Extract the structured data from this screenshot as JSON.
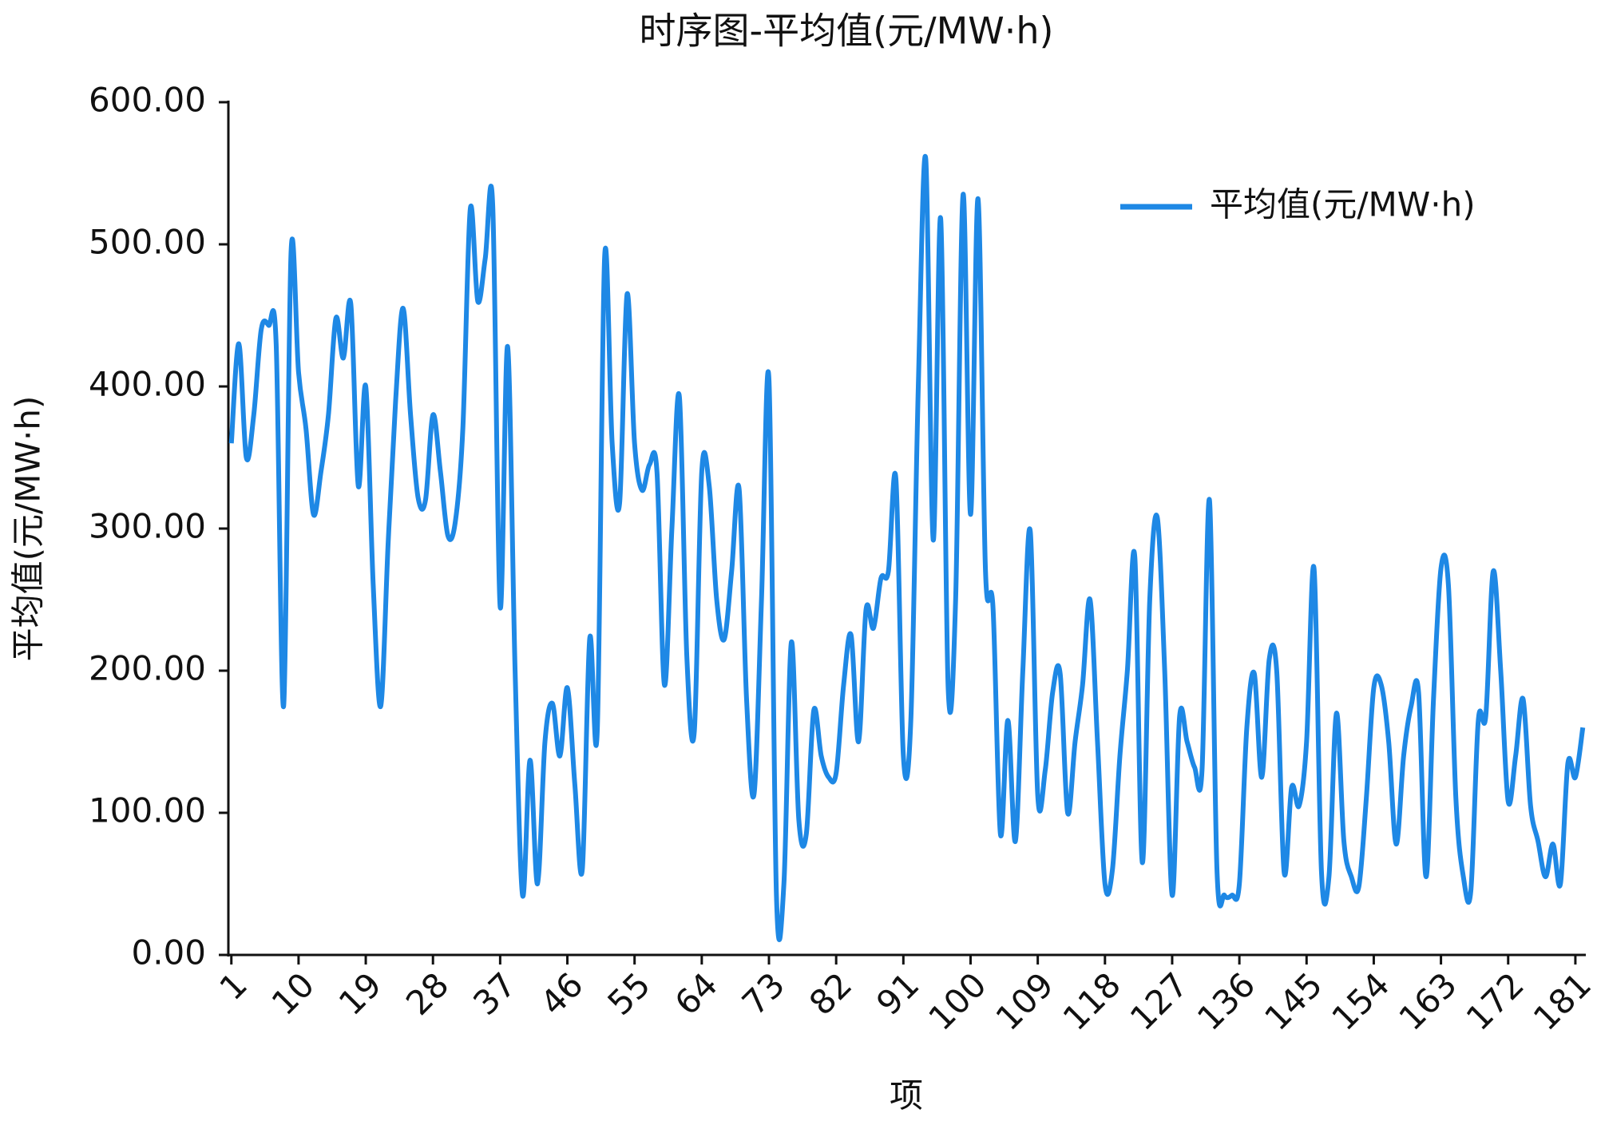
{
  "chart_data": {
    "type": "line",
    "title": "时序图-平均值(元/MW·h)",
    "x_label": "项",
    "y_label": "平均值(元/MW·h)",
    "legend_position": "upper right",
    "x": [
      1,
      2,
      3,
      4,
      5,
      6,
      7,
      8,
      9,
      10,
      11,
      12,
      13,
      14,
      15,
      16,
      17,
      18,
      19,
      20,
      21,
      22,
      23,
      24,
      25,
      26,
      27,
      28,
      29,
      30,
      31,
      32,
      33,
      34,
      35,
      36,
      37,
      38,
      39,
      40,
      41,
      42,
      43,
      44,
      45,
      46,
      47,
      48,
      49,
      50,
      51,
      52,
      53,
      54,
      55,
      56,
      57,
      58,
      59,
      60,
      61,
      62,
      63,
      64,
      65,
      66,
      67,
      68,
      69,
      70,
      71,
      72,
      73,
      74,
      75,
      76,
      77,
      78,
      79,
      80,
      81,
      82,
      83,
      84,
      85,
      86,
      87,
      88,
      89,
      90,
      91,
      92,
      93,
      94,
      95,
      96,
      97,
      98,
      99,
      100,
      101,
      102,
      103,
      104,
      105,
      106,
      107,
      108,
      109,
      110,
      111,
      112,
      113,
      114,
      115,
      116,
      117,
      118,
      119,
      120,
      121,
      122,
      123,
      124,
      125,
      126,
      127,
      128,
      129,
      130,
      131,
      132,
      133,
      134,
      135,
      136,
      137,
      138,
      139,
      140,
      141,
      142,
      143,
      144,
      145,
      146,
      147,
      148,
      149,
      150,
      151,
      152,
      153,
      154,
      155,
      156,
      157,
      158,
      159,
      160,
      161,
      162,
      163,
      164,
      165,
      166,
      167,
      168,
      169,
      170,
      171,
      172,
      173,
      174,
      175,
      176,
      177,
      178,
      179,
      180,
      181,
      182
    ],
    "series": [
      {
        "name": "平均值(元/MW·h)",
        "color": "#1e88e5",
        "values": [
          360,
          430,
          350,
          380,
          440,
          443,
          430,
          175,
          495,
          410,
          370,
          310,
          340,
          380,
          448,
          420,
          458,
          330,
          400,
          260,
          175,
          290,
          390,
          455,
          380,
          322,
          320,
          380,
          340,
          295,
          305,
          370,
          525,
          460,
          490,
          528,
          245,
          428,
          200,
          42,
          137,
          50,
          150,
          177,
          140,
          188,
          120,
          60,
          223,
          157,
          492,
          360,
          318,
          465,
          360,
          327,
          345,
          340,
          190,
          300,
          393,
          210,
          157,
          340,
          330,
          250,
          222,
          270,
          328,
          180,
          113,
          250,
          405,
          42,
          50,
          220,
          95,
          85,
          172,
          140,
          125,
          128,
          190,
          225,
          150,
          243,
          230,
          265,
          270,
          335,
          140,
          165,
          400,
          560,
          292,
          518,
          188,
          250,
          535,
          310,
          532,
          270,
          245,
          85,
          165,
          80,
          200,
          298,
          112,
          130,
          185,
          198,
          100,
          150,
          190,
          250,
          150,
          50,
          60,
          140,
          200,
          280,
          65,
          250,
          308,
          200,
          42,
          168,
          150,
          132,
          130,
          320,
          60,
          42,
          42,
          50,
          160,
          198,
          125,
          208,
          200,
          58,
          118,
          105,
          150,
          272,
          58,
          55,
          170,
          80,
          55,
          48,
          110,
          188,
          190,
          150,
          78,
          140,
          175,
          185,
          55,
          180,
          272,
          260,
          110,
          55,
          45,
          165,
          168,
          270,
          200,
          108,
          140,
          180,
          105,
          80,
          55,
          78,
          50,
          135,
          125,
          160
        ]
      }
    ],
    "xlim": [
      0.6,
      182.4
    ],
    "xticks": [
      1,
      10,
      19,
      28,
      37,
      46,
      55,
      64,
      73,
      82,
      91,
      100,
      109,
      118,
      127,
      136,
      145,
      154,
      163,
      172,
      181
    ],
    "ylim": [
      0,
      600
    ],
    "yticks": [
      {
        "value": 0,
        "label": "0.00"
      },
      {
        "value": 100,
        "label": "100.00"
      },
      {
        "value": 200,
        "label": "200.00"
      },
      {
        "value": 300,
        "label": "300.00"
      },
      {
        "value": 400,
        "label": "400.00"
      },
      {
        "value": 500,
        "label": "500.00"
      },
      {
        "value": 600,
        "label": "600.00"
      }
    ],
    "grid": false
  }
}
